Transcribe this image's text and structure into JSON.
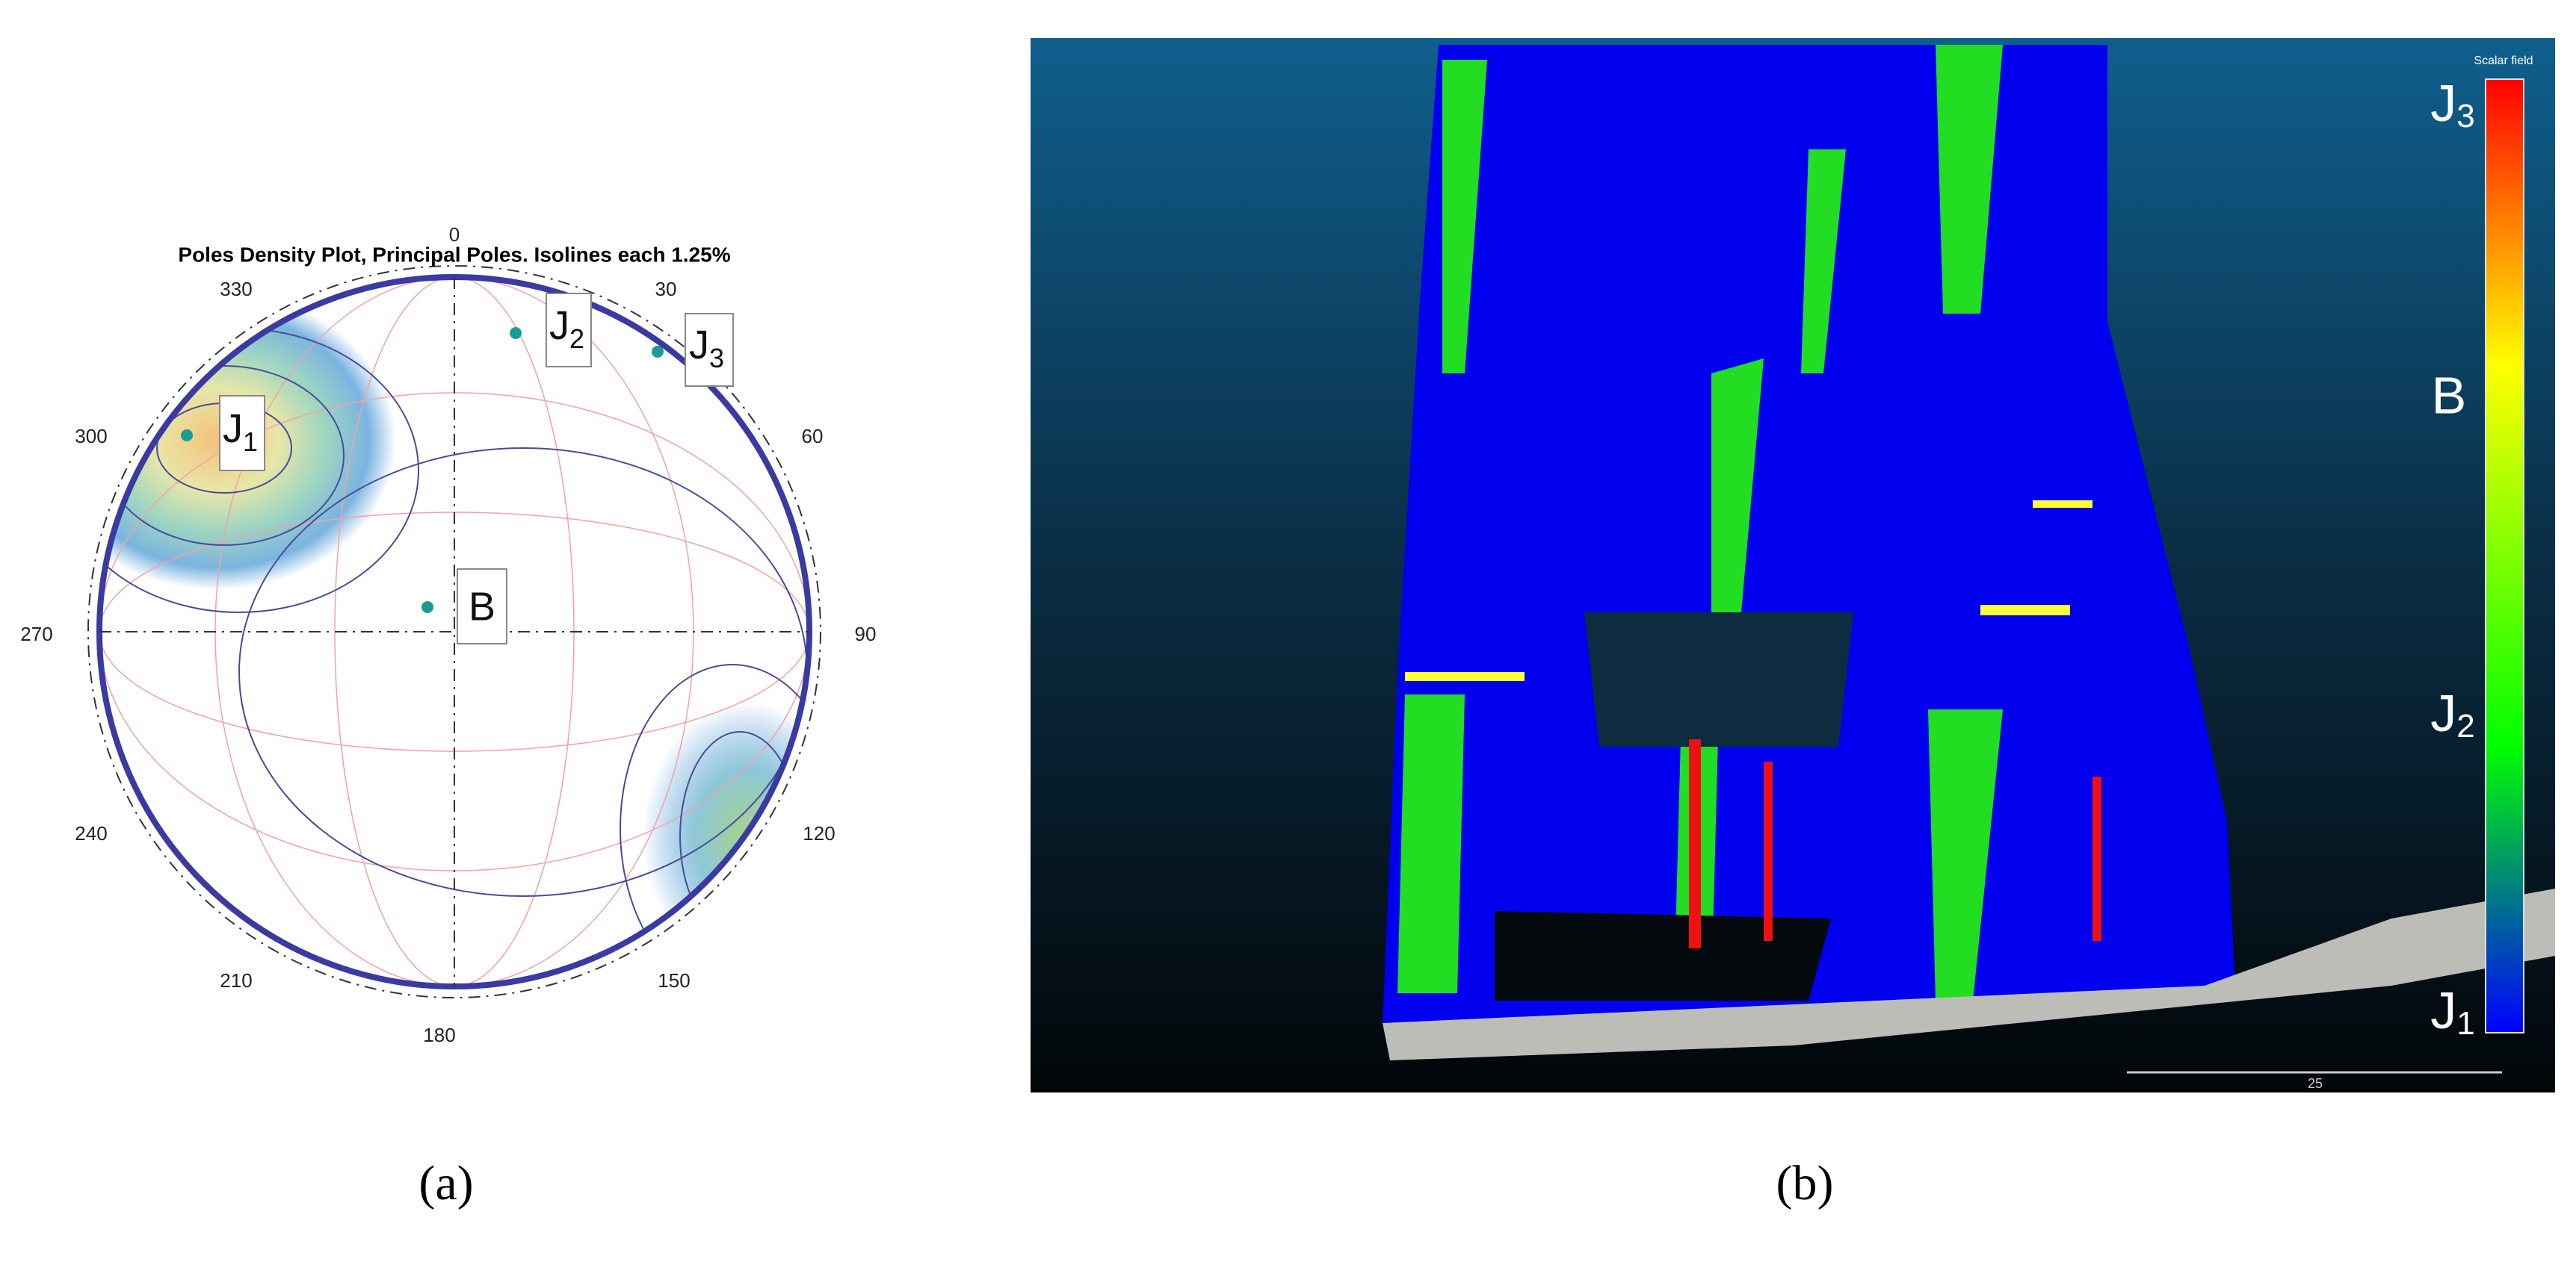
{
  "panel_a": {
    "title": "Poles Density Plot, Principal Poles. Isolines each 1.25%",
    "azimuth_labels": [
      "0",
      "30",
      "60",
      "90",
      "120",
      "150",
      "180",
      "210",
      "240",
      "270",
      "300",
      "330"
    ],
    "poles": [
      {
        "label": "J",
        "sub": "1"
      },
      {
        "label": "J",
        "sub": "2"
      },
      {
        "label": "J",
        "sub": "3"
      },
      {
        "label": "B"
      }
    ],
    "caption": "(a)"
  },
  "panel_b": {
    "scalar_field_title": "Scalar field",
    "scale_labels": [
      {
        "label": "J",
        "sub": "3"
      },
      {
        "label": "B"
      },
      {
        "label": "J",
        "sub": "2"
      },
      {
        "label": "J",
        "sub": "1"
      }
    ],
    "scale_bar_label": "25",
    "caption": "(b)"
  }
}
